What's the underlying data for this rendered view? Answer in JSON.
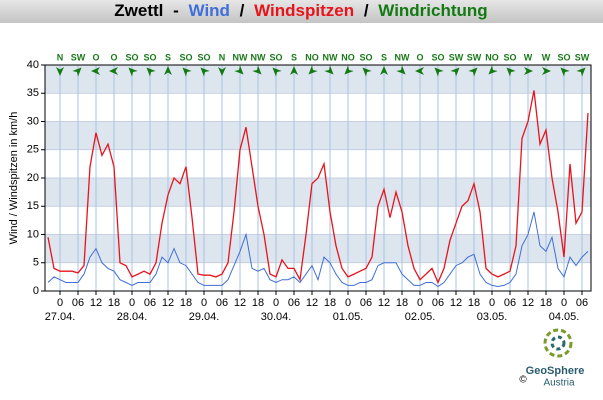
{
  "chart_data": {
    "type": "line",
    "title_station": "Zwettl",
    "title_separators": [
      "-",
      "/",
      "/"
    ],
    "title_direction": "Windrichtung",
    "direction_color": "#137a13",
    "y_label": "Wind / Windspitzen in km/h",
    "x": [
      -4,
      -2,
      0,
      2,
      4,
      6,
      8,
      10,
      12,
      14,
      16,
      18,
      20,
      22,
      24,
      26,
      28,
      30,
      32,
      34,
      36,
      38,
      40,
      42,
      44,
      46,
      48,
      50,
      52,
      54,
      56,
      58,
      60,
      62,
      64,
      66,
      68,
      70,
      72,
      74,
      76,
      78,
      80,
      82,
      84,
      86,
      88,
      90,
      92,
      94,
      96,
      98,
      100,
      102,
      104,
      106,
      108,
      110,
      112,
      114,
      116,
      118,
      120,
      122,
      124,
      126,
      128,
      130,
      132,
      134,
      136,
      138,
      140,
      142,
      144,
      146,
      148,
      150,
      152,
      154,
      156,
      158,
      160,
      162,
      164,
      166,
      168,
      170,
      172,
      174,
      176
    ],
    "series": [
      {
        "name": "Wind",
        "color": "#3f6fd8",
        "values": [
          1.5,
          2.5,
          2,
          1.5,
          1.5,
          1.5,
          3,
          6,
          7.5,
          5,
          4,
          3.5,
          2,
          1.5,
          1,
          1.5,
          1.5,
          1.5,
          3,
          6,
          5,
          7.5,
          5,
          4.5,
          3,
          1.5,
          1,
          1,
          1,
          1,
          2,
          4.5,
          7,
          10,
          4,
          3.5,
          4,
          2,
          1.5,
          2,
          2,
          2.5,
          1.5,
          3,
          4.5,
          2,
          6,
          5,
          3,
          1.5,
          1,
          1,
          1.5,
          1.5,
          2,
          4.5,
          5,
          5,
          5,
          3,
          2,
          1,
          1,
          1.5,
          1.5,
          0.8,
          1.5,
          3,
          4.5,
          5,
          6,
          6.5,
          3,
          1.5,
          1,
          0.8,
          1,
          1.5,
          3,
          8,
          10,
          14,
          8,
          7,
          9.5,
          4,
          2.5,
          6,
          4.5,
          6,
          7
        ]
      },
      {
        "name": "Windspitzen",
        "color": "#e8141c",
        "values": [
          9.5,
          4,
          3.5,
          3.5,
          3.5,
          3.2,
          4.5,
          22,
          28,
          24,
          26,
          22,
          5,
          4.5,
          2.5,
          3,
          3.5,
          3,
          5,
          12,
          17,
          20,
          19,
          22,
          13,
          3,
          2.8,
          2.8,
          2.5,
          3,
          5,
          14,
          25,
          29,
          22,
          15,
          10,
          3,
          2.5,
          5.5,
          4,
          4,
          2,
          10,
          19,
          20,
          22.5,
          14,
          8,
          4,
          2.5,
          3,
          3.5,
          4,
          6,
          15,
          18,
          13,
          17.5,
          14,
          8,
          4,
          2,
          3,
          4,
          1.5,
          4,
          9,
          12,
          15,
          16,
          19,
          14,
          4,
          3,
          2.5,
          3,
          3.5,
          8,
          27,
          30,
          35.5,
          26,
          28.5,
          20,
          14,
          6,
          22.5,
          12,
          14,
          31.5
        ]
      }
    ],
    "xlim": [
      -5,
      177
    ],
    "xticks": [
      0,
      {
        "value": 6,
        "label": "06"
      },
      12,
      18,
      {
        "value": 24,
        "label": "0"
      },
      {
        "value": 30,
        "label": "06"
      },
      {
        "value": 36,
        "label": "12"
      },
      {
        "value": 42,
        "label": "18"
      },
      {
        "value": 48,
        "label": "0"
      },
      {
        "value": 54,
        "label": "06"
      },
      {
        "value": 60,
        "label": "12"
      },
      {
        "value": 66,
        "label": "18"
      },
      {
        "value": 72,
        "label": "0"
      },
      {
        "value": 78,
        "label": "06"
      },
      {
        "value": 84,
        "label": "12"
      },
      {
        "value": 90,
        "label": "18"
      },
      {
        "value": 96,
        "label": "0"
      },
      {
        "value": 102,
        "label": "06"
      },
      {
        "value": 108,
        "label": "12"
      },
      {
        "value": 114,
        "label": "18"
      },
      {
        "value": 120,
        "label": "0"
      },
      {
        "value": 126,
        "label": "06"
      },
      {
        "value": 132,
        "label": "12"
      },
      {
        "value": 138,
        "label": "18"
      },
      {
        "value": 144,
        "label": "0"
      },
      {
        "value": 150,
        "label": "06"
      },
      {
        "value": 156,
        "label": "12"
      },
      {
        "value": 162,
        "label": "18"
      },
      {
        "value": 168,
        "label": "0"
      },
      {
        "value": 174,
        "label": "06"
      }
    ],
    "date_ticks": [
      {
        "value": 0,
        "label": "27.04."
      },
      {
        "value": 24,
        "label": "28.04."
      },
      {
        "value": 48,
        "label": "29.04."
      },
      {
        "value": 72,
        "label": "30.04."
      },
      {
        "value": 96,
        "label": "01.05."
      },
      {
        "value": 120,
        "label": "02.05."
      },
      {
        "value": 144,
        "label": "03.05."
      },
      {
        "value": 168,
        "label": "04.05."
      }
    ],
    "ylim": [
      0,
      40
    ],
    "yticks": [
      0,
      5,
      10,
      15,
      20,
      25,
      30,
      35,
      40
    ],
    "grid": true,
    "directions": {
      "x": [
        0,
        6,
        12,
        18,
        24,
        30,
        36,
        42,
        48,
        54,
        60,
        66,
        72,
        78,
        84,
        90,
        96,
        102,
        108,
        114,
        120,
        126,
        132,
        138,
        144,
        150,
        156,
        162,
        168,
        174
      ],
      "labels": [
        "N",
        "SW",
        "O",
        "O",
        "SO",
        "SO",
        "S",
        "SO",
        "SO",
        "N",
        "NW",
        "NW",
        "SO",
        "S",
        "NO",
        "NW",
        "NO",
        "SO",
        "S",
        "NW",
        "O",
        "SO",
        "SW",
        "SW",
        "NO",
        "SO",
        "W",
        "W",
        "SO",
        "SW"
      ]
    }
  },
  "logo": {
    "name": "GeoSphere",
    "sub": "Austria",
    "copyright": "©"
  }
}
